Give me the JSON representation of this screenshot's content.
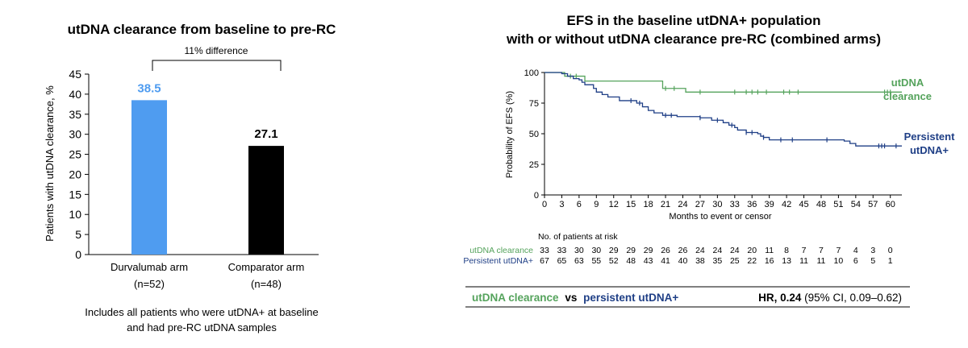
{
  "colors": {
    "clearance": "#55a35c",
    "persistent": "#1f3f86",
    "durva_bar": "#4f9cf0",
    "comp_bar": "#000000"
  },
  "chart_data": [
    {
      "type": "bar",
      "title": "utDNA clearance from baseline to pre-RC",
      "ylabel": "Patients with utDNA clearance, %",
      "ylim": [
        0,
        45
      ],
      "yticks": [
        "0",
        "5",
        "10",
        "15",
        "20",
        "25",
        "30",
        "35",
        "40",
        "45"
      ],
      "categories": [
        "Durvalumab arm",
        "Comparator arm"
      ],
      "category_n": [
        "(n=52)",
        "(n=48)"
      ],
      "values": [
        38.5,
        27.1
      ],
      "value_labels": [
        "38.5",
        "27.1"
      ],
      "bracket_label": "11% difference",
      "footnote": [
        "Includes all patients who were utDNA+ at baseline",
        "and had pre-RC utDNA samples"
      ]
    },
    {
      "type": "line",
      "title": [
        "EFS in the baseline utDNA+ population",
        "with or without utDNA clearance pre-RC (combined arms)"
      ],
      "xlabel": "Months to event or censor",
      "ylabel": "Probability of EFS (%)",
      "xlim": [
        0,
        62
      ],
      "ylim": [
        0,
        100
      ],
      "xticks": [
        "0",
        "3",
        "6",
        "9",
        "12",
        "15",
        "18",
        "21",
        "24",
        "27",
        "30",
        "33",
        "36",
        "39",
        "42",
        "45",
        "48",
        "51",
        "54",
        "57",
        "60"
      ],
      "yticks": [
        "0",
        "25",
        "50",
        "75",
        "100"
      ],
      "series": [
        {
          "name": "utDNA clearance",
          "label_lines": [
            "utDNA",
            "clearance"
          ],
          "steps": [
            [
              0,
              100
            ],
            [
              3.5,
              97
            ],
            [
              7,
              93
            ],
            [
              20.5,
              87
            ],
            [
              24.5,
              84
            ],
            [
              62,
              84
            ]
          ],
          "censors": [
            4.5,
            5.5,
            21,
            22.5,
            27,
            33,
            35,
            36,
            37,
            38.5,
            41.5,
            42.5,
            44,
            59,
            59.5,
            60
          ]
        },
        {
          "name": "Persistent utDNA+",
          "label_lines": [
            "Persistent",
            "utDNA+"
          ],
          "steps": [
            [
              0,
              100
            ],
            [
              3,
              99
            ],
            [
              4,
              97
            ],
            [
              5,
              95
            ],
            [
              6,
              94
            ],
            [
              6.5,
              92
            ],
            [
              7,
              90
            ],
            [
              8.5,
              87
            ],
            [
              9,
              84
            ],
            [
              10,
              82
            ],
            [
              11,
              80
            ],
            [
              13,
              77
            ],
            [
              16,
              75
            ],
            [
              17,
              72
            ],
            [
              18,
              69
            ],
            [
              19,
              67
            ],
            [
              20.5,
              65
            ],
            [
              23,
              64
            ],
            [
              27,
              63
            ],
            [
              29,
              61
            ],
            [
              31,
              59
            ],
            [
              32,
              57
            ],
            [
              33,
              55
            ],
            [
              33.5,
              53
            ],
            [
              35,
              51
            ],
            [
              37,
              50
            ],
            [
              37.5,
              48
            ],
            [
              38,
              47
            ],
            [
              39,
              45
            ],
            [
              52,
              44
            ],
            [
              53,
              42
            ],
            [
              54,
              40
            ],
            [
              62,
              40
            ]
          ],
          "censors": [
            15,
            16.5,
            21,
            22,
            27,
            30,
            32.5,
            35,
            36,
            38,
            41,
            43,
            49,
            58,
            58.5,
            59,
            61
          ]
        }
      ],
      "risk_table": {
        "header": "No. of patients at risk",
        "rows": [
          {
            "label": "utDNA clearance",
            "values": [
              "33",
              "33",
              "30",
              "30",
              "29",
              "29",
              "29",
              "26",
              "26",
              "24",
              "24",
              "24",
              "20",
              "11",
              "8",
              "7",
              "7",
              "7",
              "4",
              "3",
              "0"
            ]
          },
          {
            "label": "Persistent utDNA+",
            "values": [
              "67",
              "65",
              "63",
              "55",
              "52",
              "48",
              "43",
              "41",
              "40",
              "38",
              "35",
              "25",
              "22",
              "16",
              "13",
              "11",
              "11",
              "10",
              "6",
              "5",
              "1"
            ]
          }
        ]
      },
      "comparison": {
        "left_a": "utDNA clearance",
        "vs": "vs",
        "left_b": "persistent utDNA+",
        "hr_bold": "HR, 0.24",
        "hr_rest": " (95% CI, 0.09–0.62)"
      }
    }
  ]
}
